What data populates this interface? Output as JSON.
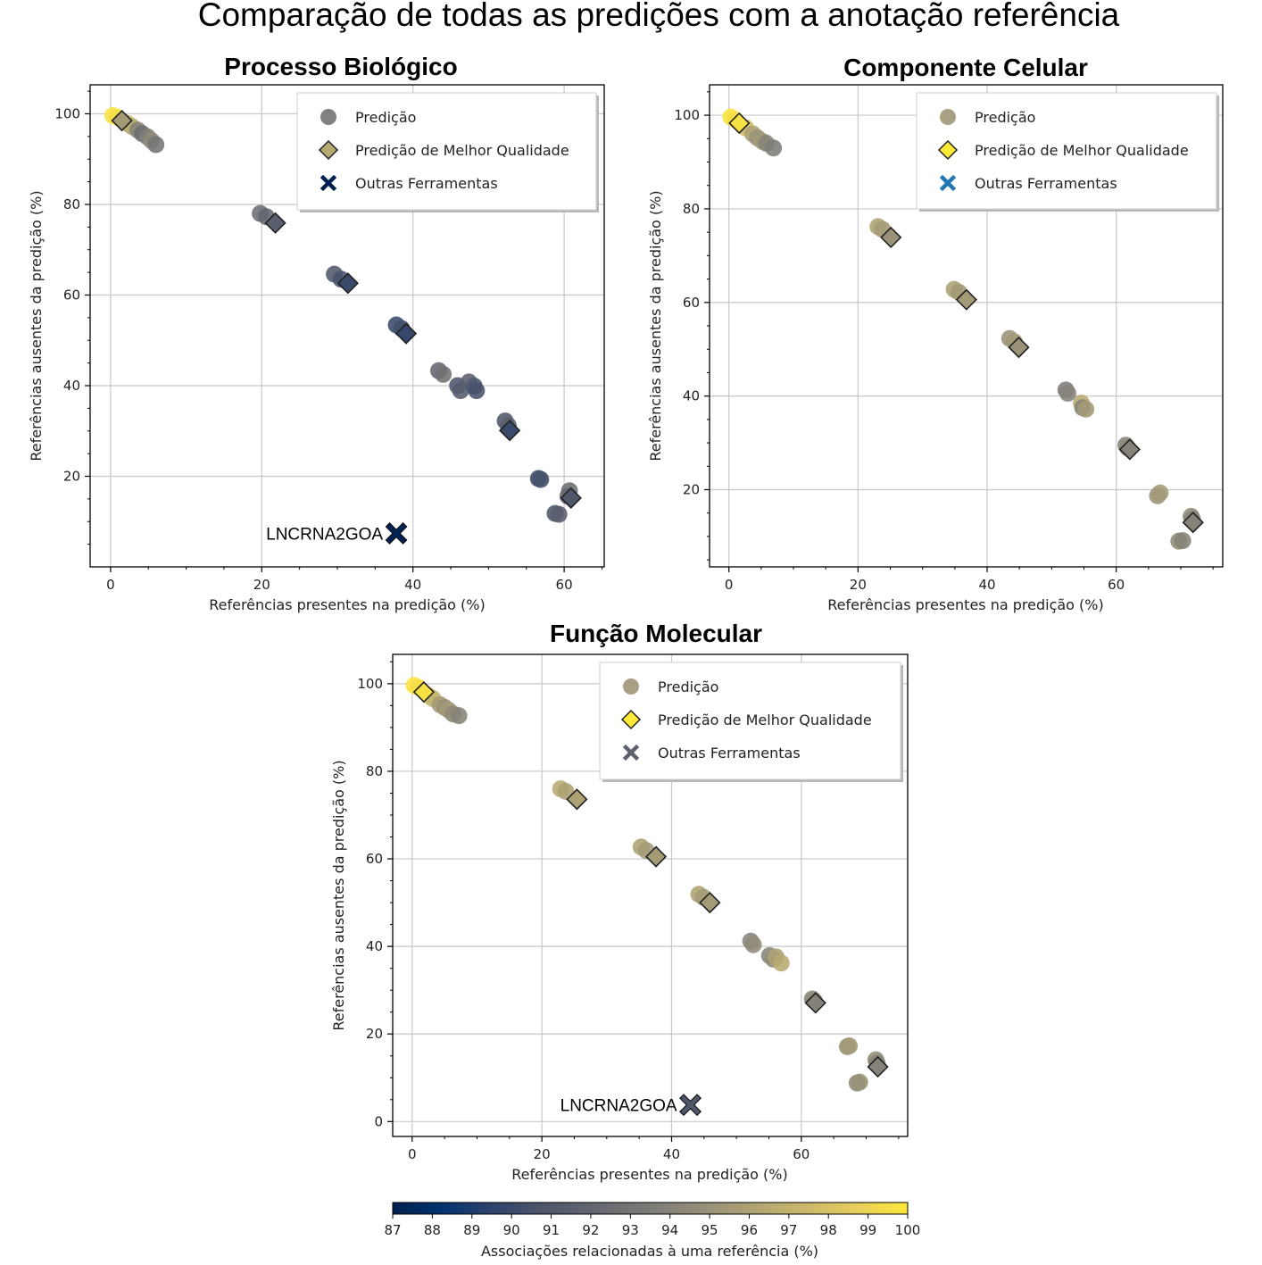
{
  "figure": {
    "title": "Comparação de todas as predições com a anotação referência"
  },
  "colorbar": {
    "label": "Associações relacionadas à uma referência (%)",
    "min": 87,
    "max": 100,
    "ticks": [
      "87",
      "88",
      "89",
      "90",
      "91",
      "92",
      "93",
      "94",
      "95",
      "96",
      "97",
      "98",
      "99",
      "100"
    ],
    "colormap": "cividis",
    "colors": [
      "#00204d",
      "#00326f",
      "#2a406c",
      "#48526b",
      "#5e626e",
      "#727374",
      "#878479",
      "#9e9677",
      "#b6a971",
      "#cfbc68",
      "#e9d05a",
      "#fee838"
    ]
  },
  "chart_data": [
    {
      "type": "scatter",
      "title": "Processo Biológico",
      "xlabel": "Referências presentes na predição (%)",
      "ylabel": "Referências ausentes da predição  (%)",
      "xlim": [
        -2.7,
        65.3
      ],
      "ylim": [
        0,
        106.4
      ],
      "xticks": [
        "0",
        "20",
        "40",
        "60"
      ],
      "yticks": [
        "20",
        "40",
        "60",
        "80",
        "100"
      ],
      "xtick_values": [
        0,
        20,
        40,
        60
      ],
      "ytick_values": [
        20,
        40,
        60,
        80,
        100
      ],
      "grid": true,
      "legend": {
        "position": "top-right",
        "items": [
          {
            "label": "Predição",
            "marker": "circle",
            "color": "#727374"
          },
          {
            "label": "Predição de Melhor Qualidade",
            "marker": "diamond",
            "color": "#b6a971"
          },
          {
            "label": "Outras Ferramentas",
            "marker": "x",
            "color": "#00204d"
          }
        ]
      },
      "series": [
        {
          "name": "Predição",
          "marker": "circle",
          "points": [
            {
              "x": 0.3,
              "y": 99.6,
              "c": 99.8
            },
            {
              "x": 0.9,
              "y": 99.2,
              "c": 99.5
            },
            {
              "x": 2.2,
              "y": 97.9,
              "c": 97.5
            },
            {
              "x": 2.8,
              "y": 97.2,
              "c": 96.5
            },
            {
              "x": 3.6,
              "y": 96.4,
              "c": 94
            },
            {
              "x": 4.2,
              "y": 95.6,
              "c": 92.5
            },
            {
              "x": 4.9,
              "y": 94.9,
              "c": 93.5
            },
            {
              "x": 5.4,
              "y": 94.1,
              "c": 94.5
            },
            {
              "x": 6.0,
              "y": 93.2,
              "c": 93
            },
            {
              "x": 19.8,
              "y": 78.0,
              "c": 92.5
            },
            {
              "x": 20.6,
              "y": 77.3,
              "c": 92
            },
            {
              "x": 29.6,
              "y": 64.6,
              "c": 91
            },
            {
              "x": 30.5,
              "y": 63.5,
              "c": 90.5
            },
            {
              "x": 37.8,
              "y": 53.4,
              "c": 90
            },
            {
              "x": 38.5,
              "y": 52.6,
              "c": 90.3
            },
            {
              "x": 43.4,
              "y": 43.3,
              "c": 92
            },
            {
              "x": 44.0,
              "y": 42.5,
              "c": 92.8
            },
            {
              "x": 45.9,
              "y": 40.0,
              "c": 90.8
            },
            {
              "x": 46.3,
              "y": 38.9,
              "c": 91.2
            },
            {
              "x": 47.4,
              "y": 40.8,
              "c": 91.5
            },
            {
              "x": 48.1,
              "y": 39.9,
              "c": 91
            },
            {
              "x": 48.4,
              "y": 38.9,
              "c": 90.5
            },
            {
              "x": 52.2,
              "y": 32.2,
              "c": 91
            },
            {
              "x": 52.6,
              "y": 31.2,
              "c": 91.5
            },
            {
              "x": 56.6,
              "y": 19.5,
              "c": 90
            },
            {
              "x": 56.9,
              "y": 19.3,
              "c": 90.5
            },
            {
              "x": 58.8,
              "y": 11.8,
              "c": 91
            },
            {
              "x": 59.3,
              "y": 11.6,
              "c": 91.5
            },
            {
              "x": 60.7,
              "y": 16.8,
              "c": 92.5
            },
            {
              "x": 60.5,
              "y": 15.6,
              "c": 92
            }
          ]
        },
        {
          "name": "Predição de Melhor Qualidade",
          "marker": "diamond",
          "points": [
            {
              "x": 1.5,
              "y": 98.5,
              "c": 95.5
            },
            {
              "x": 21.8,
              "y": 75.9,
              "c": 91.5
            },
            {
              "x": 31.4,
              "y": 62.6,
              "c": 90
            },
            {
              "x": 39.1,
              "y": 51.5,
              "c": 89.8
            },
            {
              "x": 52.8,
              "y": 30.1,
              "c": 90
            },
            {
              "x": 60.9,
              "y": 15.2,
              "c": 91
            }
          ]
        },
        {
          "name": "Outras Ferramentas",
          "marker": "x",
          "points": [
            {
              "x": 37.8,
              "y": 7.4,
              "c": 87.2
            }
          ]
        }
      ],
      "annotations": [
        {
          "text": "LNCRNA2GOA",
          "x": 37.8,
          "y": 7.4
        }
      ]
    },
    {
      "type": "scatter",
      "title": "Componente Celular",
      "xlabel": "Referências presentes na predição (%)",
      "ylabel": "Referências ausentes da predição  (%)",
      "xlim": [
        -3,
        76.5
      ],
      "ylim": [
        3.5,
        106.5
      ],
      "xticks": [
        "0",
        "20",
        "40",
        "60"
      ],
      "yticks": [
        "20",
        "40",
        "60",
        "80",
        "100"
      ],
      "xtick_values": [
        0,
        20,
        40,
        60
      ],
      "ytick_values": [
        20,
        40,
        60,
        80,
        100
      ],
      "grid": true,
      "legend": {
        "position": "top-right",
        "items": [
          {
            "label": "Predição",
            "marker": "circle",
            "color": "#9e9677"
          },
          {
            "label": "Predição de Melhor Qualidade",
            "marker": "diamond",
            "color": "#fee838"
          },
          {
            "label": "Outras Ferramentas",
            "marker": "x",
            "color": "#1f77b4"
          }
        ]
      },
      "series": [
        {
          "name": "Predição",
          "marker": "circle",
          "points": [
            {
              "x": 0.3,
              "y": 99.6,
              "c": 99.8
            },
            {
              "x": 1.0,
              "y": 99.0,
              "c": 99.5
            },
            {
              "x": 2.6,
              "y": 97.3,
              "c": 97.5
            },
            {
              "x": 3.7,
              "y": 96.0,
              "c": 96
            },
            {
              "x": 4.4,
              "y": 95.2,
              "c": 95
            },
            {
              "x": 5.2,
              "y": 94.4,
              "c": 95.5
            },
            {
              "x": 5.8,
              "y": 94.0,
              "c": 94
            },
            {
              "x": 6.9,
              "y": 93.0,
              "c": 93.5
            },
            {
              "x": 23.1,
              "y": 76.2,
              "c": 96
            },
            {
              "x": 23.8,
              "y": 75.6,
              "c": 95.5
            },
            {
              "x": 34.9,
              "y": 62.8,
              "c": 96
            },
            {
              "x": 35.6,
              "y": 62.2,
              "c": 95.5
            },
            {
              "x": 43.5,
              "y": 52.3,
              "c": 95
            },
            {
              "x": 44.2,
              "y": 51.6,
              "c": 95.5
            },
            {
              "x": 52.2,
              "y": 41.3,
              "c": 93.5
            },
            {
              "x": 52.5,
              "y": 40.6,
              "c": 94
            },
            {
              "x": 54.6,
              "y": 38.5,
              "c": 96.5
            },
            {
              "x": 54.8,
              "y": 37.5,
              "c": 94
            },
            {
              "x": 55.3,
              "y": 37.2,
              "c": 95.5
            },
            {
              "x": 61.5,
              "y": 29.5,
              "c": 94
            },
            {
              "x": 61.8,
              "y": 28.9,
              "c": 94.5
            },
            {
              "x": 66.4,
              "y": 18.7,
              "c": 95
            },
            {
              "x": 66.8,
              "y": 19.3,
              "c": 95.5
            },
            {
              "x": 69.7,
              "y": 9.0,
              "c": 94.5
            },
            {
              "x": 70.3,
              "y": 9.1,
              "c": 94
            },
            {
              "x": 71.6,
              "y": 14.3,
              "c": 94.5
            },
            {
              "x": 71.8,
              "y": 13.7,
              "c": 94
            }
          ]
        },
        {
          "name": "Predição de Melhor Qualidade",
          "marker": "diamond",
          "points": [
            {
              "x": 1.6,
              "y": 98.3,
              "c": 99.6
            },
            {
              "x": 25.1,
              "y": 73.9,
              "c": 95
            },
            {
              "x": 36.8,
              "y": 60.6,
              "c": 95.5
            },
            {
              "x": 44.9,
              "y": 50.4,
              "c": 95
            },
            {
              "x": 62.1,
              "y": 28.6,
              "c": 94
            },
            {
              "x": 71.9,
              "y": 13.0,
              "c": 94
            }
          ]
        }
      ],
      "annotations": []
    },
    {
      "type": "scatter",
      "title": "Função Molecular",
      "xlabel": "Referências presentes na predição (%)",
      "ylabel": "Referências ausentes da predição  (%)",
      "xlim": [
        -3,
        76.4
      ],
      "ylim": [
        -3.4,
        106.7
      ],
      "xticks": [
        "0",
        "20",
        "40",
        "60"
      ],
      "yticks": [
        "0",
        "20",
        "40",
        "60",
        "80",
        "100"
      ],
      "xtick_values": [
        0,
        20,
        40,
        60
      ],
      "ytick_values": [
        0,
        20,
        40,
        60,
        80,
        100
      ],
      "grid": true,
      "legend": {
        "position": "top-right",
        "items": [
          {
            "label": "Predição",
            "marker": "circle",
            "color": "#9e9677"
          },
          {
            "label": "Predição de Melhor Qualidade",
            "marker": "diamond",
            "color": "#fee838"
          },
          {
            "label": "Outras Ferramentas",
            "marker": "x",
            "color": "#5e626e"
          }
        ]
      },
      "series": [
        {
          "name": "Predição",
          "marker": "circle",
          "points": [
            {
              "x": 0.3,
              "y": 99.6,
              "c": 99.8
            },
            {
              "x": 1.0,
              "y": 99.1,
              "c": 99.5
            },
            {
              "x": 2.5,
              "y": 97.3,
              "c": 98
            },
            {
              "x": 3.2,
              "y": 96.6,
              "c": 97
            },
            {
              "x": 4.3,
              "y": 95.2,
              "c": 95.5
            },
            {
              "x": 5.0,
              "y": 94.6,
              "c": 95
            },
            {
              "x": 5.6,
              "y": 94.0,
              "c": 95.5
            },
            {
              "x": 6.3,
              "y": 93.1,
              "c": 94.5
            },
            {
              "x": 7.2,
              "y": 92.7,
              "c": 94
            },
            {
              "x": 22.9,
              "y": 76.0,
              "c": 96.5
            },
            {
              "x": 23.7,
              "y": 75.4,
              "c": 96
            },
            {
              "x": 35.3,
              "y": 62.7,
              "c": 96
            },
            {
              "x": 36.1,
              "y": 61.9,
              "c": 95.5
            },
            {
              "x": 44.2,
              "y": 51.9,
              "c": 96
            },
            {
              "x": 44.9,
              "y": 51.2,
              "c": 95.5
            },
            {
              "x": 52.2,
              "y": 41.2,
              "c": 94
            },
            {
              "x": 52.6,
              "y": 40.4,
              "c": 94.5
            },
            {
              "x": 55.1,
              "y": 37.9,
              "c": 94
            },
            {
              "x": 55.7,
              "y": 37.1,
              "c": 94.5
            },
            {
              "x": 56.1,
              "y": 37.6,
              "c": 96
            },
            {
              "x": 56.9,
              "y": 36.2,
              "c": 96.5
            },
            {
              "x": 61.7,
              "y": 28.0,
              "c": 94
            },
            {
              "x": 62.0,
              "y": 27.6,
              "c": 94.5
            },
            {
              "x": 67.1,
              "y": 17.1,
              "c": 95
            },
            {
              "x": 67.4,
              "y": 17.3,
              "c": 95.5
            },
            {
              "x": 68.6,
              "y": 8.8,
              "c": 94.5
            },
            {
              "x": 69.0,
              "y": 9.0,
              "c": 95
            },
            {
              "x": 71.5,
              "y": 14.1,
              "c": 94.5
            },
            {
              "x": 71.7,
              "y": 13.3,
              "c": 94
            }
          ]
        },
        {
          "name": "Predição de Melhor Qualidade",
          "marker": "diamond",
          "points": [
            {
              "x": 1.8,
              "y": 98.1,
              "c": 99.6
            },
            {
              "x": 25.4,
              "y": 73.6,
              "c": 96
            },
            {
              "x": 37.6,
              "y": 60.5,
              "c": 95.5
            },
            {
              "x": 45.9,
              "y": 50.0,
              "c": 95.5
            },
            {
              "x": 62.2,
              "y": 27.1,
              "c": 94
            },
            {
              "x": 71.8,
              "y": 12.5,
              "c": 94
            }
          ]
        },
        {
          "name": "Outras Ferramentas",
          "marker": "x",
          "points": [
            {
              "x": 42.9,
              "y": 3.8,
              "c": 91
            }
          ]
        }
      ],
      "annotations": [
        {
          "text": "LNCRNA2GOA",
          "x": 42.9,
          "y": 3.8
        }
      ]
    }
  ]
}
